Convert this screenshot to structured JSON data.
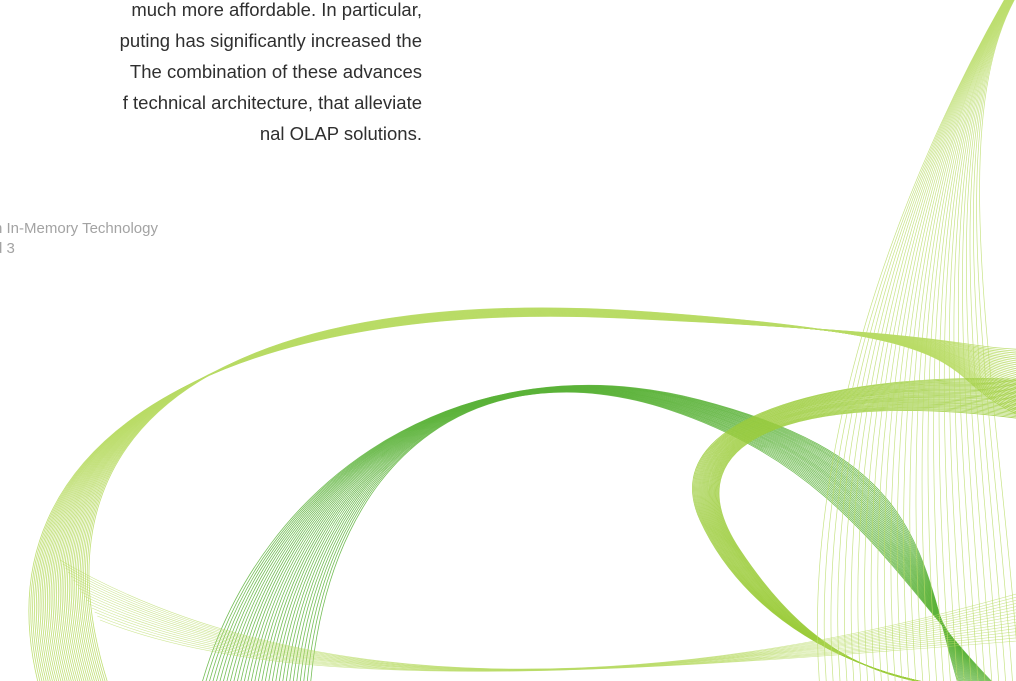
{
  "document": {
    "body_lines": [
      "much more affordable.  In particular,",
      "puting has significantly increased the",
      "The combination of these advances",
      "f technical architecture, that alleviate",
      "nal OLAP solutions."
    ],
    "caption_lines": [
      "n In-Memory Technology",
      "d 3"
    ]
  },
  "colors": {
    "background": "#ffffff",
    "body_text": "#2f2f2f",
    "caption_text": "#a3a3a3",
    "swirl_light": "#b9dc66",
    "swirl_mid": "#9ccd3c",
    "swirl_dark": "#5cb33a"
  }
}
